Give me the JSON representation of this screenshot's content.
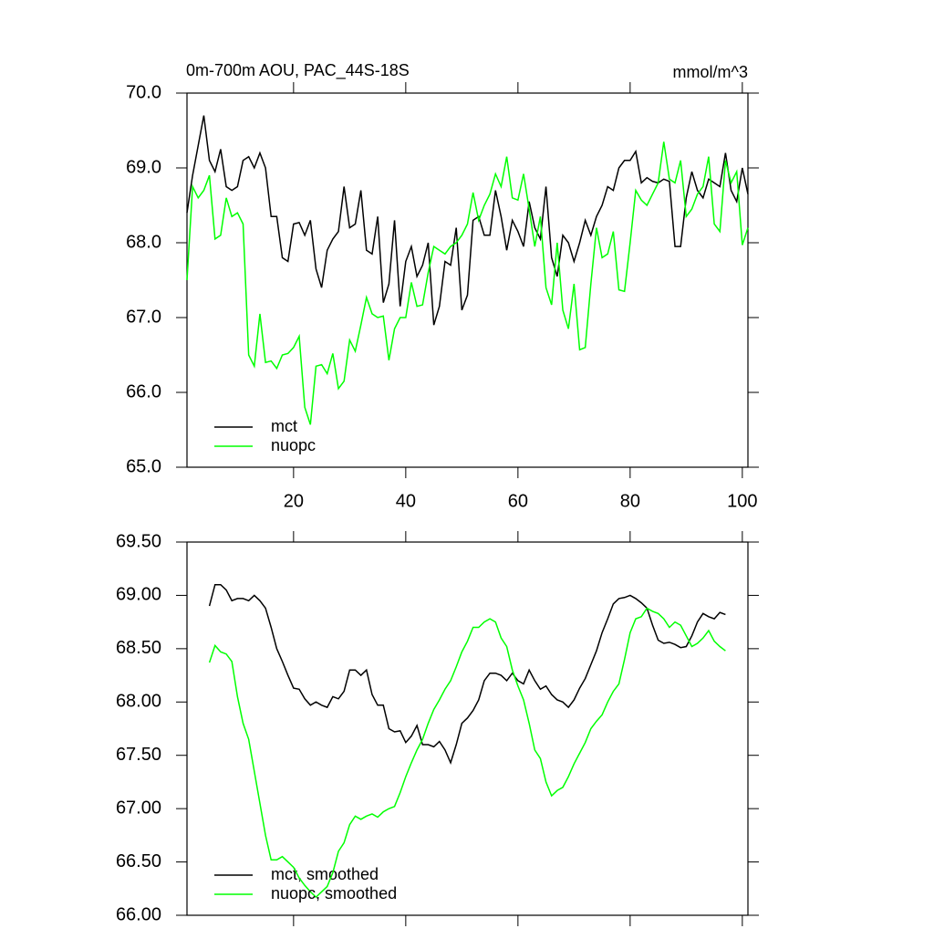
{
  "chart_data": [
    {
      "type": "line",
      "title": "0m-700m AOU, PAC_44S-18S",
      "right_title": "mmol/m^3",
      "x": [
        1,
        2,
        3,
        4,
        5,
        6,
        7,
        8,
        9,
        10,
        11,
        12,
        13,
        14,
        15,
        16,
        17,
        18,
        19,
        20,
        21,
        22,
        23,
        24,
        25,
        26,
        27,
        28,
        29,
        30,
        31,
        32,
        33,
        34,
        35,
        36,
        37,
        38,
        39,
        40,
        41,
        42,
        43,
        44,
        45,
        46,
        47,
        48,
        49,
        50,
        51,
        52,
        53,
        54,
        55,
        56,
        57,
        58,
        59,
        60,
        61,
        62,
        63,
        64,
        65,
        66,
        67,
        68,
        69,
        70,
        71,
        72,
        73,
        74,
        75,
        76,
        77,
        78,
        79,
        80,
        81,
        82,
        83,
        84,
        85,
        86,
        87,
        88,
        89,
        90,
        91,
        92,
        93,
        94,
        95,
        96,
        97,
        98,
        99,
        100,
        101
      ],
      "xlim": [
        1,
        101
      ],
      "xticks": [
        20,
        40,
        60,
        80,
        100
      ],
      "ylim": [
        65,
        70
      ],
      "yticks": [
        {
          "value": 65,
          "label": "65.0"
        },
        {
          "value": 66,
          "label": "66.0"
        },
        {
          "value": 67,
          "label": "67.0"
        },
        {
          "value": 68,
          "label": "68.0"
        },
        {
          "value": 69,
          "label": "69.0"
        },
        {
          "value": 70,
          "label": "70.0"
        }
      ],
      "legend": "lower-left",
      "series": [
        {
          "name": "mct",
          "color": "#000000",
          "values": [
            68.4,
            68.9,
            69.3,
            69.7,
            69.1,
            68.95,
            69.25,
            68.75,
            68.7,
            68.75,
            69.1,
            69.15,
            69.0,
            69.2,
            69.0,
            68.35,
            68.35,
            67.8,
            67.75,
            68.25,
            68.27,
            68.1,
            68.3,
            67.65,
            67.4,
            67.9,
            68.05,
            68.15,
            68.75,
            68.2,
            68.25,
            68.7,
            67.9,
            67.85,
            68.35,
            67.2,
            67.45,
            68.3,
            67.15,
            67.75,
            67.95,
            67.55,
            67.7,
            68.0,
            66.9,
            67.15,
            67.75,
            67.7,
            68.2,
            67.1,
            67.3,
            68.3,
            68.35,
            68.1,
            68.1,
            68.7,
            68.35,
            67.9,
            68.3,
            68.15,
            67.95,
            68.55,
            68.2,
            68.05,
            68.75,
            67.8,
            67.55,
            68.1,
            68.0,
            67.75,
            68.0,
            68.3,
            68.1,
            68.35,
            68.5,
            68.75,
            68.7,
            69.0,
            69.1,
            69.1,
            69.22,
            68.8,
            68.87,
            68.82,
            68.8,
            68.85,
            68.82,
            67.95,
            67.95,
            68.6,
            68.95,
            68.7,
            68.6,
            68.85,
            68.8,
            68.75,
            69.2,
            68.7,
            68.55,
            69.0,
            68.65
          ]
        },
        {
          "name": "nuopc",
          "color": "#00ff00",
          "values": [
            67.5,
            68.75,
            68.6,
            68.7,
            68.9,
            68.05,
            68.1,
            68.6,
            68.35,
            68.4,
            68.25,
            66.5,
            66.35,
            67.05,
            66.4,
            66.42,
            66.32,
            66.5,
            66.52,
            66.6,
            66.75,
            65.8,
            65.57,
            66.35,
            66.37,
            66.25,
            66.52,
            66.05,
            66.15,
            66.7,
            66.55,
            66.9,
            67.27,
            67.05,
            67.0,
            67.02,
            66.43,
            66.85,
            67.0,
            67.0,
            67.47,
            67.15,
            67.17,
            67.6,
            67.95,
            67.9,
            67.85,
            67.95,
            68.0,
            68.1,
            68.25,
            68.67,
            68.3,
            68.5,
            68.65,
            68.92,
            68.75,
            69.15,
            68.6,
            68.57,
            68.92,
            68.45,
            67.95,
            68.35,
            67.4,
            67.17,
            68.0,
            67.1,
            66.85,
            67.45,
            66.57,
            66.6,
            67.45,
            68.2,
            67.8,
            67.85,
            68.15,
            67.37,
            67.35,
            68.0,
            68.7,
            68.57,
            68.5,
            68.65,
            68.8,
            69.35,
            68.85,
            68.8,
            69.1,
            68.35,
            68.45,
            68.65,
            68.75,
            69.15,
            68.25,
            68.15,
            69.1,
            68.8,
            68.95,
            67.97,
            68.2
          ]
        }
      ]
    },
    {
      "type": "line",
      "x": [
        5,
        6,
        7,
        8,
        9,
        10,
        11,
        12,
        13,
        14,
        15,
        16,
        17,
        18,
        19,
        20,
        21,
        22,
        23,
        24,
        25,
        26,
        27,
        28,
        29,
        30,
        31,
        32,
        33,
        34,
        35,
        36,
        37,
        38,
        39,
        40,
        41,
        42,
        43,
        44,
        45,
        46,
        47,
        48,
        49,
        50,
        51,
        52,
        53,
        54,
        55,
        56,
        57,
        58,
        59,
        60,
        61,
        62,
        63,
        64,
        65,
        66,
        67,
        68,
        69,
        70,
        71,
        72,
        73,
        74,
        75,
        76,
        77,
        78,
        79,
        80,
        81,
        82,
        83,
        84,
        85,
        86,
        87,
        88,
        89,
        90,
        91,
        92,
        93,
        94,
        95,
        96,
        97
      ],
      "xlim": [
        1,
        101
      ],
      "xticks": [
        20,
        40,
        60,
        80,
        100
      ],
      "ylim": [
        66,
        69.5
      ],
      "yticks": [
        {
          "value": 66,
          "label": "66.00"
        },
        {
          "value": 66.5,
          "label": "66.50"
        },
        {
          "value": 67,
          "label": "67.00"
        },
        {
          "value": 67.5,
          "label": "67.50"
        },
        {
          "value": 68,
          "label": "68.00"
        },
        {
          "value": 68.5,
          "label": "68.50"
        },
        {
          "value": 69,
          "label": "69.00"
        },
        {
          "value": 69.5,
          "label": "69.50"
        }
      ],
      "legend": "lower-left",
      "series": [
        {
          "name": "mct, smoothed",
          "color": "#000000",
          "values": [
            68.9,
            69.1,
            69.1,
            69.05,
            68.95,
            68.97,
            68.97,
            68.95,
            69.0,
            68.95,
            68.88,
            68.7,
            68.5,
            68.38,
            68.25,
            68.13,
            68.12,
            68.03,
            67.97,
            68.0,
            67.97,
            67.95,
            68.05,
            68.03,
            68.1,
            68.3,
            68.3,
            68.25,
            68.3,
            68.07,
            67.97,
            67.97,
            67.75,
            67.72,
            67.73,
            67.62,
            67.68,
            67.78,
            67.6,
            67.6,
            67.58,
            67.63,
            67.55,
            67.43,
            67.6,
            67.8,
            67.85,
            67.92,
            68.02,
            68.2,
            68.27,
            68.27,
            68.25,
            68.2,
            68.27,
            68.2,
            68.17,
            68.3,
            68.2,
            68.12,
            68.15,
            68.07,
            68.02,
            68.0,
            67.95,
            68.02,
            68.13,
            68.22,
            68.35,
            68.48,
            68.65,
            68.78,
            68.92,
            68.97,
            68.98,
            69.0,
            68.97,
            68.93,
            68.88,
            68.72,
            68.58,
            68.55,
            68.56,
            68.54,
            68.51,
            68.52,
            68.62,
            68.75,
            68.83,
            68.8,
            68.78,
            68.84,
            68.82
          ]
        },
        {
          "name": "nuopc, smoothed",
          "color": "#00ff00",
          "values": [
            68.37,
            68.53,
            68.47,
            68.45,
            68.38,
            68.05,
            67.8,
            67.65,
            67.35,
            67.05,
            66.75,
            66.52,
            66.52,
            66.55,
            66.5,
            66.45,
            66.35,
            66.28,
            66.22,
            66.17,
            66.22,
            66.27,
            66.4,
            66.6,
            66.68,
            66.85,
            66.93,
            66.9,
            66.93,
            66.95,
            66.92,
            66.97,
            67.0,
            67.02,
            67.15,
            67.3,
            67.43,
            67.55,
            67.65,
            67.8,
            67.93,
            68.02,
            68.12,
            68.2,
            68.33,
            68.47,
            68.57,
            68.7,
            68.7,
            68.75,
            68.78,
            68.75,
            68.6,
            68.52,
            68.3,
            68.15,
            68.02,
            67.8,
            67.55,
            67.47,
            67.25,
            67.12,
            67.17,
            67.2,
            67.3,
            67.42,
            67.52,
            67.62,
            67.75,
            67.82,
            67.88,
            68.0,
            68.1,
            68.17,
            68.4,
            68.65,
            68.78,
            68.8,
            68.88,
            68.85,
            68.83,
            68.78,
            68.7,
            68.75,
            68.72,
            68.62,
            68.52,
            68.55,
            68.6,
            68.67,
            68.57,
            68.52,
            68.48
          ]
        }
      ]
    }
  ]
}
